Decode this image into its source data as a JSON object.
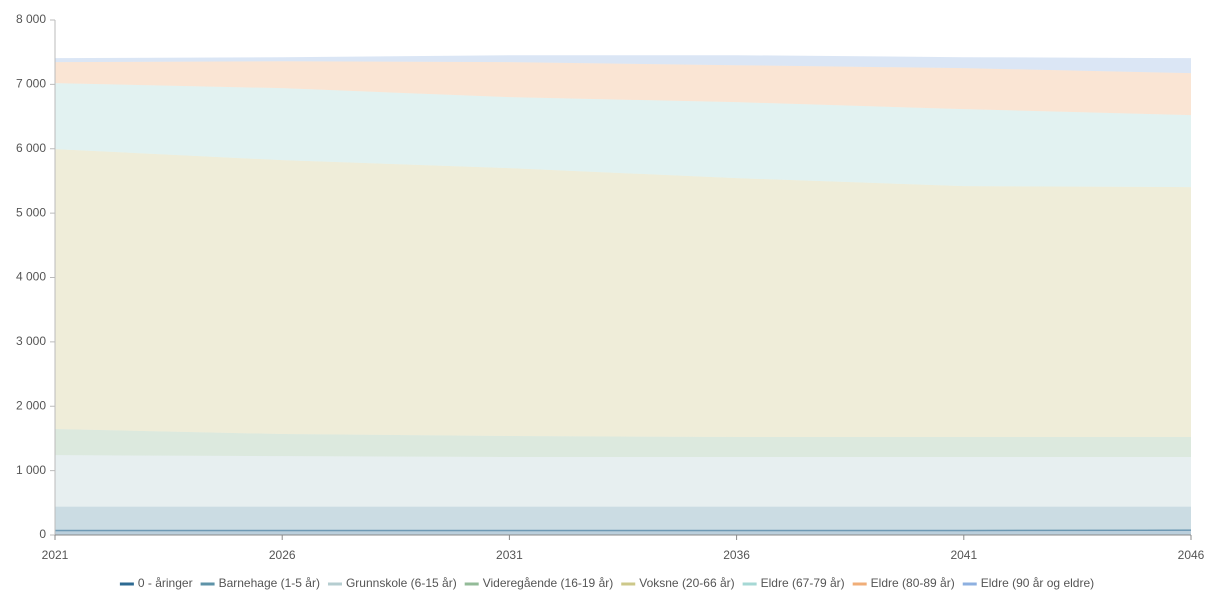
{
  "chart_data": {
    "type": "stacked-area",
    "x": [
      2021,
      2026,
      2031,
      2036,
      2041,
      2046
    ],
    "xlim": [
      2021,
      2046
    ],
    "xticks": [
      2021,
      2026,
      2031,
      2036,
      2041,
      2046
    ],
    "ylim": [
      0,
      8000
    ],
    "yticks": [
      0,
      {
        "value": 1000,
        "label": "1 000"
      },
      {
        "value": 2000,
        "label": "2 000"
      },
      {
        "value": 3000,
        "label": "3 000"
      },
      {
        "value": 4000,
        "label": "4 000"
      },
      {
        "value": 5000,
        "label": "5 000"
      },
      {
        "value": 6000,
        "label": "6 000"
      },
      {
        "value": 7000,
        "label": "7 000"
      },
      {
        "value": 8000,
        "label": "8 000"
      }
    ],
    "legend": "bottom",
    "series": [
      {
        "name": "0 - åringer",
        "color": "#2d6a92",
        "values": [
          70,
          70,
          70,
          70,
          70,
          75
        ]
      },
      {
        "name": "Barnehage (1-5 år)",
        "color": "#5e93a8",
        "values": [
          370,
          370,
          370,
          370,
          370,
          365
        ]
      },
      {
        "name": "Grunnskole (6-15 år)",
        "color": "#b5cdd0",
        "values": [
          800,
          785,
          771,
          771,
          771,
          771
        ]
      },
      {
        "name": "Videregående (16-19 år)",
        "color": "#93bb98",
        "values": [
          406,
          343,
          326,
          311,
          311,
          311
        ]
      },
      {
        "name": "Voksne (20-66 år)",
        "color": "#cdc88a",
        "values": [
          4348,
          4255,
          4162,
          4021,
          3897,
          3882
        ]
      },
      {
        "name": "Eldre (67-79 år)",
        "color": "#a6d8d5",
        "values": [
          1025,
          1118,
          1102,
          1181,
          1196,
          1118
        ]
      },
      {
        "name": "Eldre (80-89 år)",
        "color": "#f0ae78",
        "values": [
          326,
          419,
          544,
          574,
          637,
          652
        ]
      },
      {
        "name": "Eldre (90 år og eldre)",
        "color": "#8eb0e0",
        "values": [
          62,
          62,
          108,
          155,
          170,
          233
        ]
      }
    ]
  }
}
